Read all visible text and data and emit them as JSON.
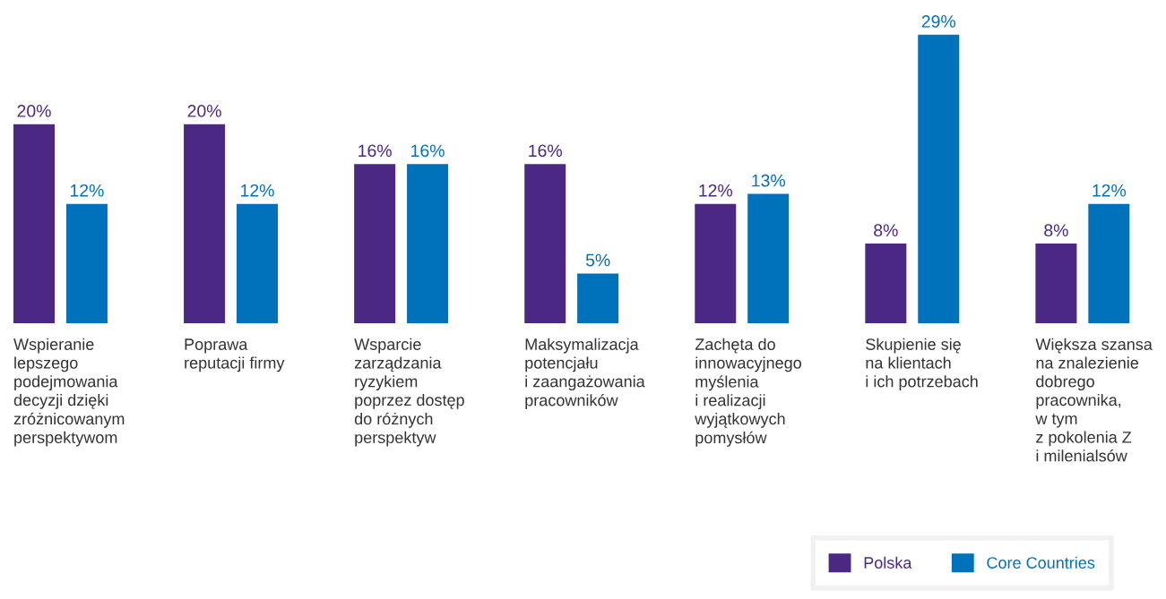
{
  "chart_data": {
    "type": "bar",
    "categories": [
      "Wspieranie\nlepszego\npodejmowania\ndecyzji dzięki\nzróżnicowanym\nperspektywom",
      "Poprawa\nreputacji firmy",
      "Wsparcie\nzarządzania\nryzykiem\npoprzez dostęp\ndo różnych\nperspektyw",
      "Maksymalizacja\npotencjału\ni zaangażowania\npracowników",
      "Zachęta do\ninnowacyjnego\nmyślenia\ni realizacji\nwyjątkowych\npomysłów",
      "Skupienie się\nna klientach\ni ich potrzebach",
      "Większa szansa\nna znalezienie\ndobrego\npracownika,\nw tym\nz pokolenia Z\ni milenialsów"
    ],
    "series": [
      {
        "name": "Polska",
        "color": "#4b2883",
        "values": [
          20,
          20,
          16,
          16,
          12,
          8,
          8
        ],
        "value_labels": [
          "20%",
          "20%",
          "16%",
          "16%",
          "12%",
          "8%",
          "8%"
        ]
      },
      {
        "name": "Core Countries",
        "color": "#0071bb",
        "values": [
          12,
          12,
          16,
          5,
          13,
          29,
          12
        ],
        "value_labels": [
          "12%",
          "12%",
          "16%",
          "5%",
          "13%",
          "29%",
          "12%"
        ]
      }
    ],
    "legend": "bottom right",
    "grid": false
  }
}
